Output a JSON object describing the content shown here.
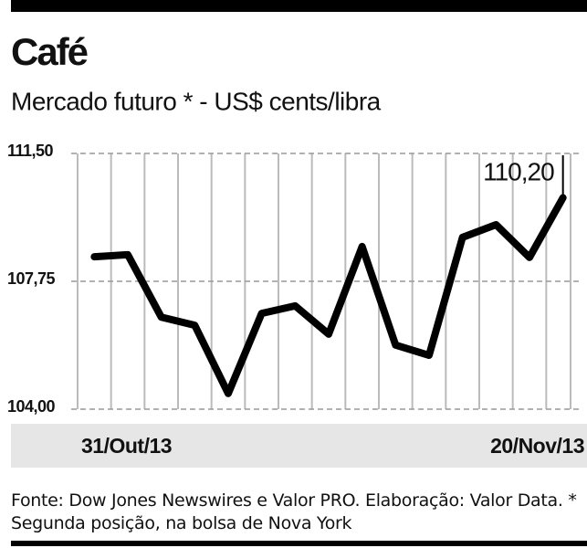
{
  "chart_data": {
    "type": "line",
    "title": "Café",
    "subtitle": "Mercado futuro * - US$ cents/libra",
    "categories": [
      "31/Out/13",
      null,
      null,
      null,
      null,
      null,
      null,
      null,
      null,
      null,
      null,
      null,
      null,
      null,
      "20/Nov/13"
    ],
    "values": [
      108.47,
      108.53,
      106.7,
      106.46,
      104.46,
      106.81,
      107.03,
      106.2,
      108.77,
      105.88,
      105.58,
      109.04,
      109.41,
      108.45,
      110.2
    ],
    "value_labels": [
      null,
      null,
      null,
      null,
      null,
      null,
      null,
      null,
      null,
      null,
      null,
      null,
      null,
      null,
      "110,20"
    ],
    "color": "#000000",
    "ylim": [
      104,
      111.5
    ],
    "yticks": [
      {
        "value": 104,
        "label": "104,00"
      },
      {
        "value": 107.75,
        "label": "107,75"
      },
      {
        "value": 111.5,
        "label": "111,50"
      }
    ],
    "grid": true,
    "source": "Fonte: Dow Jones Newswires e Valor PRO. Elaboração: Valor Data. * Segunda posição, na bolsa de Nova York"
  }
}
